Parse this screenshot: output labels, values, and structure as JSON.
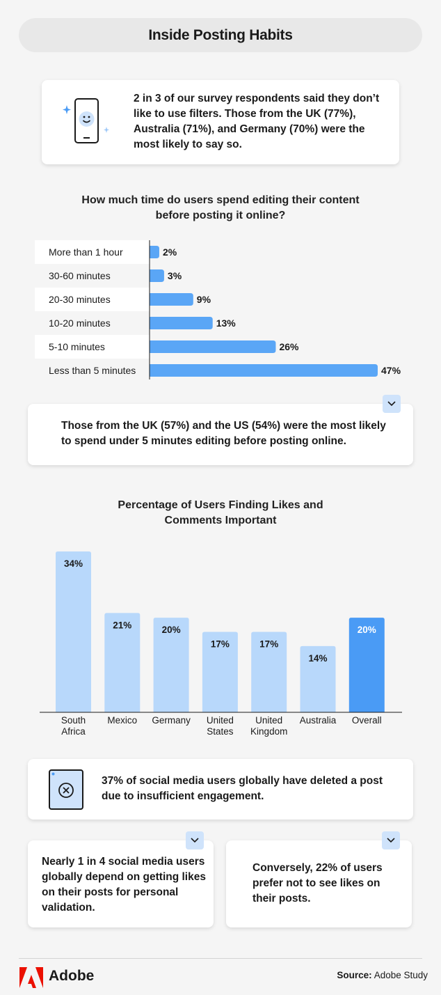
{
  "header": {
    "title": "Inside Posting Habits"
  },
  "filters_card": {
    "text": "2 in 3 of our survey respondents said they don’t like to use filters. Those from the UK (77%), Australia (71%), and Germany (70%) were the most likely to say so."
  },
  "editing_note": {
    "text": "Those from the UK (57%) and the US (54%) were the most likely to spend under 5 minutes editing before posting online."
  },
  "deleted_card": {
    "text": "37% of social media users globally have deleted a post due to insufficient engagement."
  },
  "validation_card": {
    "text": "Nearly 1 in 4 social media users globally depend on getting likes on their posts for personal validation."
  },
  "hide_likes_card": {
    "text": "Conversely, 22% of users prefer not to see likes on their posts."
  },
  "footer": {
    "brand": "Adobe",
    "source_label": "Source:",
    "source_value": "Adobe Study"
  },
  "colors": {
    "bar_light": "#b8d8fb",
    "bar_accent": "#4a9bf5",
    "bar_edit": "#5aa6f6",
    "logo_red": "#eb1000"
  },
  "chart_data": [
    {
      "type": "bar",
      "orientation": "horizontal",
      "title": "How much time do users spend editing their content before posting it online?",
      "categories": [
        "More than 1 hour",
        "30-60 minutes",
        "20-30 minutes",
        "10-20 minutes",
        "5-10 minutes",
        "Less than 5 minutes"
      ],
      "values": [
        2,
        3,
        9,
        13,
        26,
        47
      ],
      "value_labels": [
        "2%",
        "3%",
        "9%",
        "13%",
        "26%",
        "47%"
      ],
      "xlim": [
        0,
        47
      ]
    },
    {
      "type": "bar",
      "orientation": "vertical",
      "title": "Percentage of Users Finding Likes and Comments Important",
      "categories": [
        [
          "South",
          "Africa"
        ],
        [
          "Mexico"
        ],
        [
          "Germany"
        ],
        [
          "United",
          "States"
        ],
        [
          "United",
          "Kingdom"
        ],
        [
          "Australia"
        ],
        [
          "Overall"
        ]
      ],
      "values": [
        34,
        21,
        20,
        17,
        17,
        14,
        20
      ],
      "value_labels": [
        "34%",
        "21%",
        "20%",
        "17%",
        "17%",
        "14%",
        "20%"
      ],
      "highlight_index": 6,
      "ylim": [
        0,
        34
      ]
    }
  ]
}
